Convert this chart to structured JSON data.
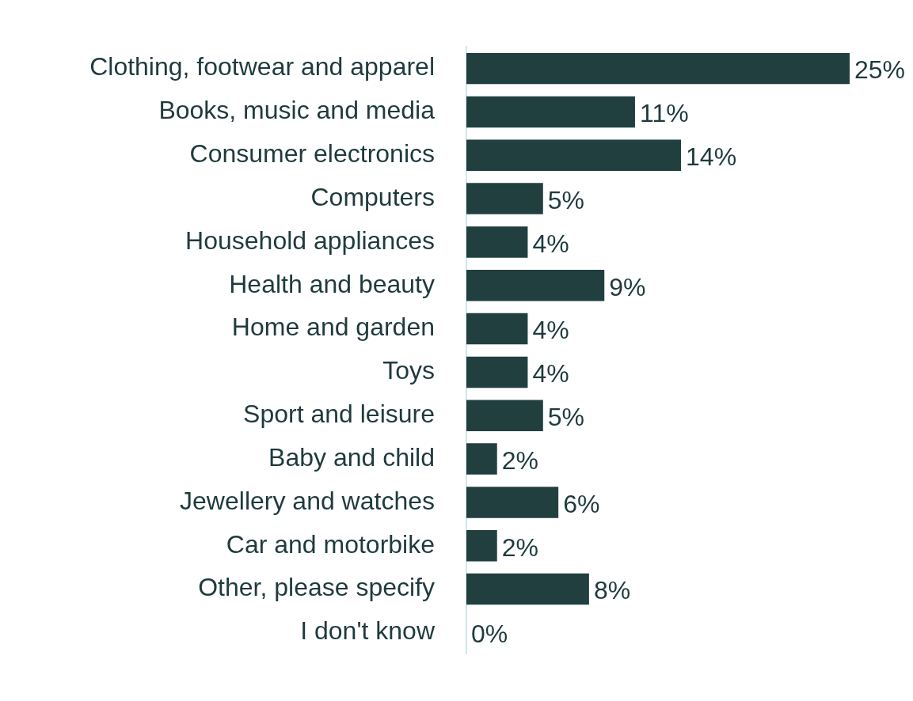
{
  "chart_data": {
    "type": "bar",
    "orientation": "horizontal",
    "categories": [
      "Clothing, footwear and apparel",
      "Books, music and media",
      "Consumer electronics",
      "Computers",
      "Household appliances",
      "Health and beauty",
      "Home and garden",
      "Toys",
      "Sport and leisure",
      "Baby and child",
      "Jewellery and watches",
      "Car and motorbike",
      "Other, please specify",
      "I don't know"
    ],
    "values": [
      25,
      11,
      14,
      5,
      4,
      9,
      4,
      4,
      5,
      2,
      6,
      2,
      8,
      0
    ],
    "value_labels": [
      "25%",
      "11%",
      "14%",
      "5%",
      "4%",
      "9%",
      "4%",
      "4%",
      "5%",
      "2%",
      "6%",
      "2%",
      "8%",
      "0%"
    ],
    "color": "#223f40",
    "tick_labels": "y"
  }
}
